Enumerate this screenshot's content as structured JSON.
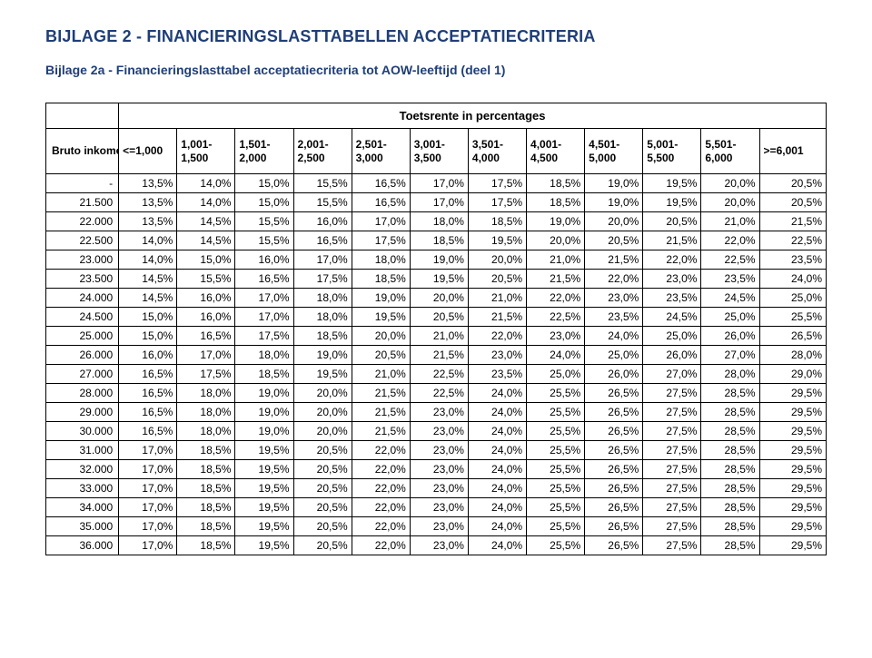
{
  "heading": "BIJLAGE 2 - FINANCIERINGSLASTTABELLEN ACCEPTATIECRITERIA",
  "subheading": "Bijlage 2a - Financieringslasttabel acceptatiecriteria tot AOW-leeftijd (deel 1)",
  "colors": {
    "heading_color": "#1f3e78",
    "text_color": "#000000",
    "border_color": "#000000",
    "background": "#ffffff"
  },
  "typography": {
    "heading_fontsize_pt": 14,
    "subheading_fontsize_pt": 11,
    "body_fontsize_pt": 9,
    "font_family": "Arial"
  },
  "table": {
    "type": "table",
    "spanner_label": "Toetsrente in percentages",
    "row_header_label": "Bruto inkomen in euro's",
    "column_labels": [
      "<=1,000",
      "1,001-\n1,500",
      "1,501-\n2,000",
      "2,001-\n2,500",
      "2,501-\n3,000",
      "3,001-\n3,500",
      "3,501-\n4,000",
      "4,001-\n4,500",
      "4,501-\n5,000",
      "5,001-\n5,500",
      "5,501-\n6,000",
      ">=6,001"
    ],
    "row_labels": [
      "-",
      "21.500",
      "22.000",
      "22.500",
      "23.000",
      "23.500",
      "24.000",
      "24.500",
      "25.000",
      "26.000",
      "27.000",
      "28.000",
      "29.000",
      "30.000",
      "31.000",
      "32.000",
      "33.000",
      "34.000",
      "35.000",
      "36.000"
    ],
    "rows": [
      [
        "13,5%",
        "14,0%",
        "15,0%",
        "15,5%",
        "16,5%",
        "17,0%",
        "17,5%",
        "18,5%",
        "19,0%",
        "19,5%",
        "20,0%",
        "20,5%"
      ],
      [
        "13,5%",
        "14,0%",
        "15,0%",
        "15,5%",
        "16,5%",
        "17,0%",
        "17,5%",
        "18,5%",
        "19,0%",
        "19,5%",
        "20,0%",
        "20,5%"
      ],
      [
        "13,5%",
        "14,5%",
        "15,5%",
        "16,0%",
        "17,0%",
        "18,0%",
        "18,5%",
        "19,0%",
        "20,0%",
        "20,5%",
        "21,0%",
        "21,5%"
      ],
      [
        "14,0%",
        "14,5%",
        "15,5%",
        "16,5%",
        "17,5%",
        "18,5%",
        "19,5%",
        "20,0%",
        "20,5%",
        "21,5%",
        "22,0%",
        "22,5%"
      ],
      [
        "14,0%",
        "15,0%",
        "16,0%",
        "17,0%",
        "18,0%",
        "19,0%",
        "20,0%",
        "21,0%",
        "21,5%",
        "22,0%",
        "22,5%",
        "23,5%"
      ],
      [
        "14,5%",
        "15,5%",
        "16,5%",
        "17,5%",
        "18,5%",
        "19,5%",
        "20,5%",
        "21,5%",
        "22,0%",
        "23,0%",
        "23,5%",
        "24,0%"
      ],
      [
        "14,5%",
        "16,0%",
        "17,0%",
        "18,0%",
        "19,0%",
        "20,0%",
        "21,0%",
        "22,0%",
        "23,0%",
        "23,5%",
        "24,5%",
        "25,0%"
      ],
      [
        "15,0%",
        "16,0%",
        "17,0%",
        "18,0%",
        "19,5%",
        "20,5%",
        "21,5%",
        "22,5%",
        "23,5%",
        "24,5%",
        "25,0%",
        "25,5%"
      ],
      [
        "15,0%",
        "16,5%",
        "17,5%",
        "18,5%",
        "20,0%",
        "21,0%",
        "22,0%",
        "23,0%",
        "24,0%",
        "25,0%",
        "26,0%",
        "26,5%"
      ],
      [
        "16,0%",
        "17,0%",
        "18,0%",
        "19,0%",
        "20,5%",
        "21,5%",
        "23,0%",
        "24,0%",
        "25,0%",
        "26,0%",
        "27,0%",
        "28,0%"
      ],
      [
        "16,5%",
        "17,5%",
        "18,5%",
        "19,5%",
        "21,0%",
        "22,5%",
        "23,5%",
        "25,0%",
        "26,0%",
        "27,0%",
        "28,0%",
        "29,0%"
      ],
      [
        "16,5%",
        "18,0%",
        "19,0%",
        "20,0%",
        "21,5%",
        "22,5%",
        "24,0%",
        "25,5%",
        "26,5%",
        "27,5%",
        "28,5%",
        "29,5%"
      ],
      [
        "16,5%",
        "18,0%",
        "19,0%",
        "20,0%",
        "21,5%",
        "23,0%",
        "24,0%",
        "25,5%",
        "26,5%",
        "27,5%",
        "28,5%",
        "29,5%"
      ],
      [
        "16,5%",
        "18,0%",
        "19,0%",
        "20,0%",
        "21,5%",
        "23,0%",
        "24,0%",
        "25,5%",
        "26,5%",
        "27,5%",
        "28,5%",
        "29,5%"
      ],
      [
        "17,0%",
        "18,5%",
        "19,5%",
        "20,5%",
        "22,0%",
        "23,0%",
        "24,0%",
        "25,5%",
        "26,5%",
        "27,5%",
        "28,5%",
        "29,5%"
      ],
      [
        "17,0%",
        "18,5%",
        "19,5%",
        "20,5%",
        "22,0%",
        "23,0%",
        "24,0%",
        "25,5%",
        "26,5%",
        "27,5%",
        "28,5%",
        "29,5%"
      ],
      [
        "17,0%",
        "18,5%",
        "19,5%",
        "20,5%",
        "22,0%",
        "23,0%",
        "24,0%",
        "25,5%",
        "26,5%",
        "27,5%",
        "28,5%",
        "29,5%"
      ],
      [
        "17,0%",
        "18,5%",
        "19,5%",
        "20,5%",
        "22,0%",
        "23,0%",
        "24,0%",
        "25,5%",
        "26,5%",
        "27,5%",
        "28,5%",
        "29,5%"
      ],
      [
        "17,0%",
        "18,5%",
        "19,5%",
        "20,5%",
        "22,0%",
        "23,0%",
        "24,0%",
        "25,5%",
        "26,5%",
        "27,5%",
        "28,5%",
        "29,5%"
      ],
      [
        "17,0%",
        "18,5%",
        "19,5%",
        "20,5%",
        "22,0%",
        "23,0%",
        "24,0%",
        "25,5%",
        "26,5%",
        "27,5%",
        "28,5%",
        "29,5%"
      ]
    ],
    "column_alignment": "right",
    "row_label_alignment": "right"
  }
}
